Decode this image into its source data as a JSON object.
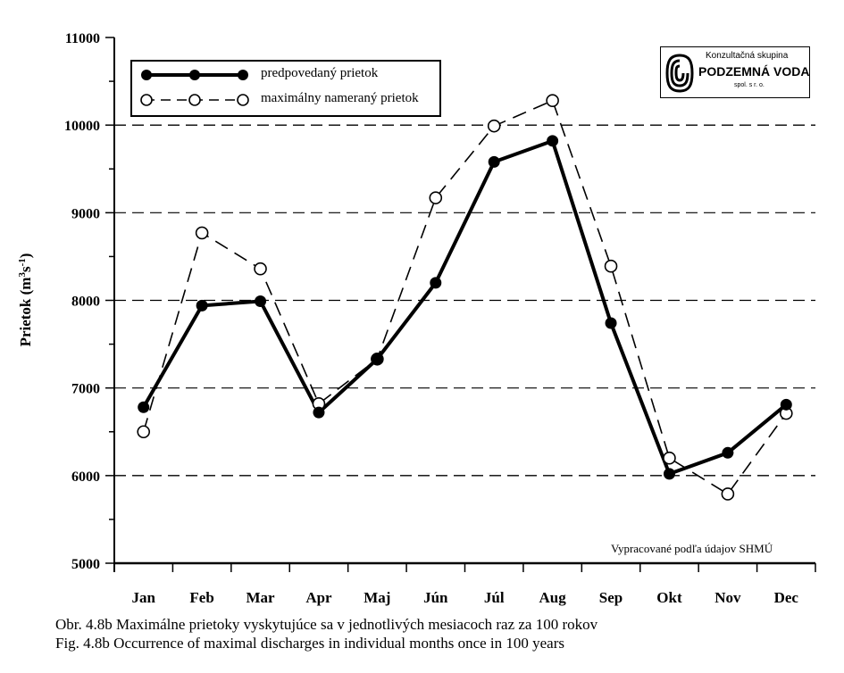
{
  "chart_data": {
    "type": "line",
    "categories": [
      "Jan",
      "Feb",
      "Mar",
      "Apr",
      "Maj",
      "Jún",
      "Júl",
      "Aug",
      "Sep",
      "Okt",
      "Nov",
      "Dec"
    ],
    "series": [
      {
        "name": "predpovedaný prietok",
        "style": "solid",
        "marker": "filled-circle",
        "values": [
          6780,
          7940,
          7990,
          6720,
          7330,
          8200,
          9580,
          9820,
          7740,
          6020,
          6260,
          6810
        ]
      },
      {
        "name": "maximálny nameraný prietok",
        "style": "dashed",
        "marker": "open-circle",
        "values": [
          6500,
          8770,
          8360,
          6820,
          7330,
          9170,
          9990,
          10280,
          8390,
          6200,
          5790,
          6710
        ]
      }
    ],
    "ylabel": "Prietok (m³s⁻¹)",
    "ylabel_parts": [
      "Prietok (m",
      "3",
      "s",
      "-1",
      ")"
    ],
    "ylim": [
      5000,
      11000
    ],
    "yticks": [
      5000,
      6000,
      7000,
      8000,
      9000,
      10000,
      11000
    ],
    "ytick_labels": [
      "5000",
      "6000",
      "7000",
      "8000",
      "9000",
      "10000",
      "11000"
    ],
    "grid": "horizontal dashed at 6000, 8000, 10000",
    "legend_position": "top-left"
  },
  "logo": {
    "top_text": "Konzultačná skupina",
    "main_text": "PODZEMNÁ VODA",
    "sub_text": "spol. s r. o."
  },
  "source_note": "Vypracované podľa údajov SHMÚ",
  "captions": [
    "Obr. 4.8b  Maximálne prietoky vyskytujúce sa v jednotlivých mesiacoch raz za 100 rokov",
    "Fig. 4.8b  Occurrence of maximal discharges in individual months once in 100 years"
  ]
}
